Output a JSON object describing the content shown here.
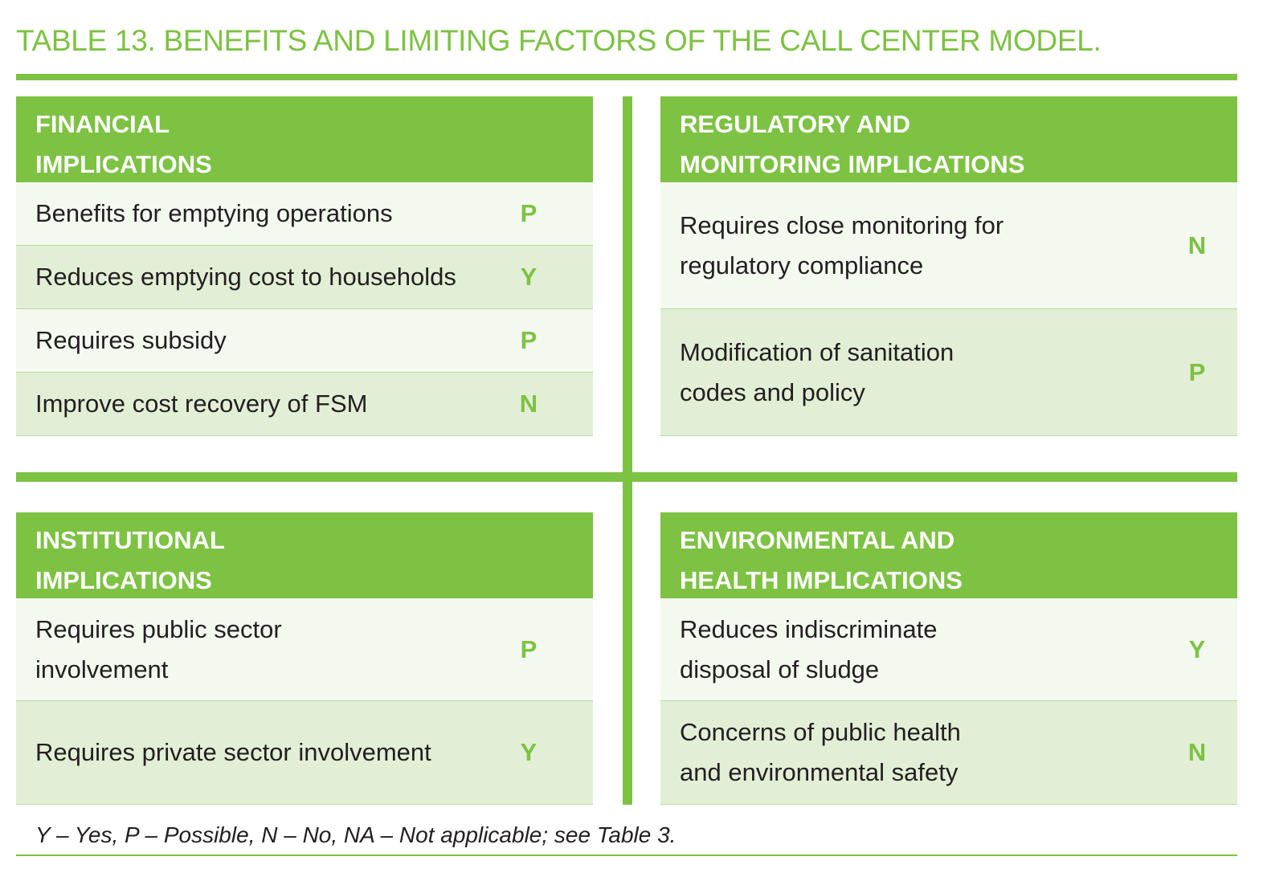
{
  "title": "TABLE 13. BENEFITS AND LIMITING FACTORS OF THE CALL CENTER MODEL.",
  "panels": {
    "financial": {
      "header_line1": "FINANCIAL",
      "header_line2": "IMPLICATIONS",
      "rows": [
        {
          "label_line1": "Benefits for emptying operations",
          "code": "P"
        },
        {
          "label_line1": "Reduces emptying cost to households",
          "code": "Y"
        },
        {
          "label_line1": "Requires subsidy",
          "code": "P"
        },
        {
          "label_line1": "Improve cost recovery of FSM",
          "code": "N"
        }
      ]
    },
    "regulatory": {
      "header_line1": "REGULATORY AND",
      "header_line2": "MONITORING IMPLICATIONS",
      "rows": [
        {
          "label_line1": "Requires close monitoring for",
          "label_line2": "regulatory compliance",
          "code": "N"
        },
        {
          "label_line1": "Modification of sanitation",
          "label_line2": "codes and policy",
          "code": "P"
        }
      ]
    },
    "institutional": {
      "header_line1": "INSTITUTIONAL",
      "header_line2": "IMPLICATIONS",
      "rows": [
        {
          "label_line1": "Requires public sector",
          "label_line2": "involvement",
          "code": "P"
        },
        {
          "label_line1": "Requires private sector involvement",
          "code": "Y"
        }
      ]
    },
    "environmental": {
      "header_line1": "ENVIRONMENTAL AND",
      "header_line2": "HEALTH IMPLICATIONS",
      "rows": [
        {
          "label_line1": "Reduces indiscriminate",
          "label_line2": "disposal of sludge",
          "code": "Y"
        },
        {
          "label_line1": "Concerns of public health",
          "label_line2": "and environmental safety",
          "code": "N"
        }
      ]
    }
  },
  "footnote": "Y – Yes, P – Possible, N – No, NA – Not applicable; see Table 3.",
  "colors": {
    "accent": "#7dc242",
    "row_light": "#f4f9f0",
    "row_dark": "#e2efd6"
  }
}
